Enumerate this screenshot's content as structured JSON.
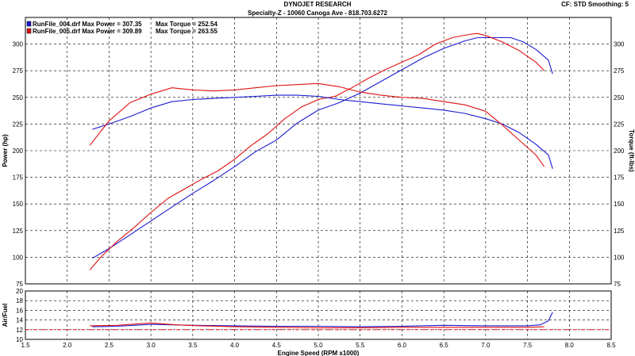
{
  "header": {
    "title": "DYNOJET RESEARCH",
    "subtitle": "Specialty-Z - 10060 Canoga Ave - 818.703.6272",
    "cf": "CF: STD  Smoothing: 5"
  },
  "legend": [
    {
      "label": "RunFile_004.drf Max Power = 307.35",
      "torque": "Max Torque = 252.54",
      "color": "#1a1ad0"
    },
    {
      "label": "RunFile_005.drf Max Power = 309.89",
      "torque": "Max Torque = 263.55",
      "color": "#e01010"
    }
  ],
  "chart_data": [
    {
      "type": "line",
      "xlabel": "Engine Speed (RPM x1000)",
      "ylabel": "Power (hp)",
      "ylabel_right": "Torque (ft-lbs)",
      "xlim": [
        1.5,
        8.5
      ],
      "ylim": [
        75,
        325
      ],
      "xticks": [
        "1.5",
        "2.0",
        "2.5",
        "3.0",
        "3.5",
        "4.0",
        "4.5",
        "5.0",
        "5.5",
        "6.0",
        "6.5",
        "7.0",
        "7.5",
        "8.0",
        "8.5"
      ],
      "yticks": [
        "75",
        "100",
        "125",
        "150",
        "175",
        "200",
        "225",
        "250",
        "275",
        "300"
      ],
      "grid": true,
      "series": [
        {
          "name": "RunFile_004.drf",
          "quantity": "power",
          "color": "#1a1ad0",
          "x": [
            2.3,
            2.5,
            2.75,
            3.0,
            3.25,
            3.5,
            3.75,
            4.0,
            4.25,
            4.5,
            4.75,
            5.0,
            5.25,
            5.5,
            5.75,
            6.0,
            6.25,
            6.5,
            6.75,
            6.9,
            7.0,
            7.15,
            7.3,
            7.45,
            7.6,
            7.75,
            7.8
          ],
          "y": [
            99,
            108,
            121,
            134,
            147,
            160,
            172,
            185,
            199,
            210,
            226,
            238,
            245,
            254,
            265,
            276,
            287,
            296,
            303,
            306,
            306,
            306,
            306,
            302,
            295,
            285,
            272
          ]
        },
        {
          "name": "RunFile_005.drf",
          "quantity": "power",
          "color": "#e01010",
          "x": [
            2.27,
            2.4,
            2.6,
            2.8,
            3.0,
            3.2,
            3.4,
            3.6,
            3.8,
            4.0,
            4.2,
            4.4,
            4.6,
            4.8,
            5.0,
            5.2,
            5.4,
            5.6,
            5.8,
            6.0,
            6.2,
            6.4,
            6.6,
            6.8,
            6.9,
            7.0,
            7.2,
            7.4,
            7.6,
            7.7
          ],
          "y": [
            88,
            100,
            115,
            128,
            142,
            155,
            164,
            173,
            181,
            192,
            205,
            216,
            230,
            241,
            248,
            251,
            259,
            268,
            276,
            283,
            290,
            300,
            306,
            309,
            310,
            308,
            302,
            294,
            283,
            275
          ]
        },
        {
          "name": "RunFile_004.drf",
          "quantity": "torque",
          "color": "#1a1ad0",
          "x": [
            2.3,
            2.5,
            2.75,
            3.0,
            3.25,
            3.5,
            3.75,
            4.0,
            4.25,
            4.5,
            4.75,
            5.0,
            5.25,
            5.5,
            5.75,
            6.0,
            6.25,
            6.5,
            6.75,
            7.0,
            7.2,
            7.4,
            7.6,
            7.75,
            7.8
          ],
          "y": [
            220,
            225,
            232,
            240,
            246,
            248,
            249,
            250,
            251,
            252,
            252,
            251,
            248,
            246,
            244,
            242,
            240,
            238,
            235,
            230,
            225,
            217,
            206,
            196,
            183
          ]
        },
        {
          "name": "RunFile_005.drf",
          "quantity": "torque",
          "color": "#e01010",
          "x": [
            2.27,
            2.5,
            2.75,
            3.0,
            3.25,
            3.5,
            3.75,
            4.0,
            4.25,
            4.5,
            4.75,
            5.0,
            5.25,
            5.5,
            5.75,
            6.0,
            6.25,
            6.5,
            6.75,
            7.0,
            7.2,
            7.4,
            7.6,
            7.7
          ],
          "y": [
            205,
            228,
            245,
            253,
            259,
            257,
            256,
            257,
            259,
            261,
            262,
            263,
            260,
            255,
            252,
            250,
            249,
            246,
            243,
            237,
            224,
            210,
            196,
            185
          ]
        }
      ]
    },
    {
      "type": "line",
      "xlabel": "Engine Speed (RPM x1000)",
      "ylabel": "Air/Fuel",
      "xlim": [
        1.5,
        8.5
      ],
      "ylim": [
        10,
        20
      ],
      "xticks": [
        "1.5",
        "2.0",
        "2.5",
        "3.0",
        "3.5",
        "4.0",
        "4.5",
        "5.0",
        "5.5",
        "6.0",
        "6.5",
        "7.0",
        "7.5",
        "8.0",
        "8.5"
      ],
      "yticks": [
        "10",
        "12",
        "14",
        "16",
        "18",
        "20"
      ],
      "grid": true,
      "reference_line": 12.0,
      "series": [
        {
          "name": "RunFile_004.drf",
          "color": "#1a1ad0",
          "x": [
            2.3,
            2.6,
            3.0,
            3.5,
            4.0,
            4.5,
            5.0,
            5.5,
            6.0,
            6.5,
            7.0,
            7.5,
            7.65,
            7.75,
            7.8
          ],
          "y": [
            12.6,
            12.7,
            13.1,
            12.9,
            12.8,
            12.7,
            12.7,
            12.6,
            12.7,
            12.9,
            12.8,
            12.8,
            13.0,
            13.8,
            15.6
          ]
        },
        {
          "name": "RunFile_005.drf",
          "color": "#e01010",
          "x": [
            2.27,
            2.6,
            3.0,
            3.3,
            3.6,
            4.0,
            4.5,
            5.0,
            5.5,
            6.0,
            6.5,
            7.0,
            7.5,
            7.7
          ],
          "y": [
            12.8,
            12.9,
            13.4,
            13.0,
            12.8,
            12.6,
            12.5,
            12.4,
            12.4,
            12.5,
            12.5,
            12.5,
            12.5,
            12.6
          ]
        }
      ]
    }
  ]
}
